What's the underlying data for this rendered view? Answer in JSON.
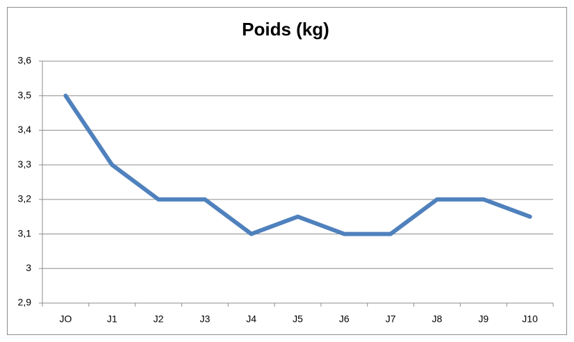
{
  "chart_data": {
    "type": "line",
    "title": "Poids (kg)",
    "categories": [
      "JO",
      "J1",
      "J2",
      "J3",
      "J4",
      "J5",
      "J6",
      "J7",
      "J8",
      "J9",
      "J10"
    ],
    "series": [
      {
        "name": "Poids (kg)",
        "color": "#4f81bd",
        "values": [
          3.5,
          3.3,
          3.2,
          3.2,
          3.1,
          3.15,
          3.1,
          3.1,
          3.2,
          3.2,
          3.15
        ]
      }
    ],
    "ylim": [
      2.9,
      3.6
    ],
    "yticks": [
      {
        "value": 2.9,
        "label": "2,9"
      },
      3,
      {
        "value": 3.1,
        "label": "3,1"
      },
      {
        "value": 3.2,
        "label": "3,2"
      },
      {
        "value": 3.3,
        "label": "3,3"
      },
      {
        "value": 3.4,
        "label": "3,4"
      },
      {
        "value": 3.5,
        "label": "3,5"
      },
      {
        "value": 3.6,
        "label": "3,6"
      }
    ],
    "grid": true
  }
}
